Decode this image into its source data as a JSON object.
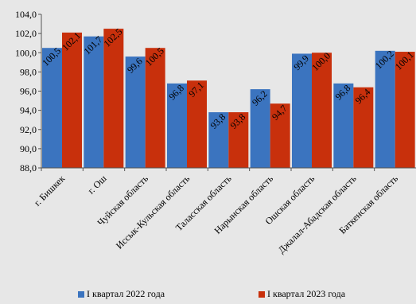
{
  "chart_data": {
    "type": "bar",
    "categories": [
      "г. Бишкек",
      "г. Ош",
      "Чуйская область",
      "Иссык-Кульская область",
      "Таласская область",
      "Нарынская область",
      "Ошская область",
      "Джалал-Абадская область",
      "Баткенская область"
    ],
    "series": [
      {
        "name": "I квартал 2022 года",
        "values": [
          100.5,
          101.7,
          99.6,
          96.8,
          93.8,
          96.2,
          99.9,
          96.8,
          100.2
        ],
        "labels": [
          "100,5",
          "101,7",
          "99,6",
          "96,8",
          "93,8",
          "96,2",
          "99,9",
          "96,8",
          "100,2"
        ],
        "color": "#3b74bf"
      },
      {
        "name": "I квартал 2023 года",
        "values": [
          102.1,
          102.5,
          100.5,
          97.1,
          93.8,
          94.7,
          100.0,
          96.4,
          100.1
        ],
        "labels": [
          "102,1",
          "102,5",
          "100,5",
          "97,1",
          "93,8",
          "94,7",
          "100,0",
          "96,4",
          "100,1"
        ],
        "color": "#c8300c"
      }
    ],
    "ylim": [
      88.0,
      104.0
    ],
    "yticks": [
      88.0,
      90.0,
      92.0,
      94.0,
      96.0,
      98.0,
      100.0,
      102.0,
      104.0
    ],
    "ytick_labels": [
      "88,0",
      "90,0",
      "92,0",
      "94,0",
      "96,0",
      "98,0",
      "100,0",
      "102,0",
      "104,0"
    ],
    "grid": false,
    "legend": "bottom",
    "title": "",
    "xlabel": "",
    "ylabel": ""
  }
}
